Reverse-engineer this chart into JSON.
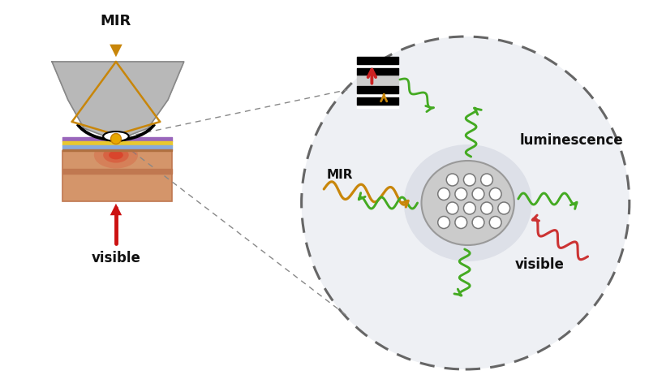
{
  "bg_color": "#ffffff",
  "mir_color": "#c8860a",
  "visible_color": "#cc1111",
  "green_color": "#44aa22",
  "red_wave_color": "#cc3333",
  "prism_color": "#b8b8b8",
  "prism_edge": "#888888",
  "substrate_top_color": "#e8c840",
  "substrate_mid_color": "#cc88bb",
  "substrate_bot_color": "#88aacc",
  "substrate_base_color": "#d4956a",
  "substrate_base_dark": "#c07850",
  "text_color": "#111111",
  "label_mir": "MIR",
  "label_visible": "visible",
  "label_luminescence": "luminescence",
  "circle_fill": "#eef0f4",
  "circle_edge": "#666666",
  "nano_fill": "#d0d0d0",
  "nano_edge": "#aaaaaa",
  "nano_outer_fill": "#e8e8e8"
}
